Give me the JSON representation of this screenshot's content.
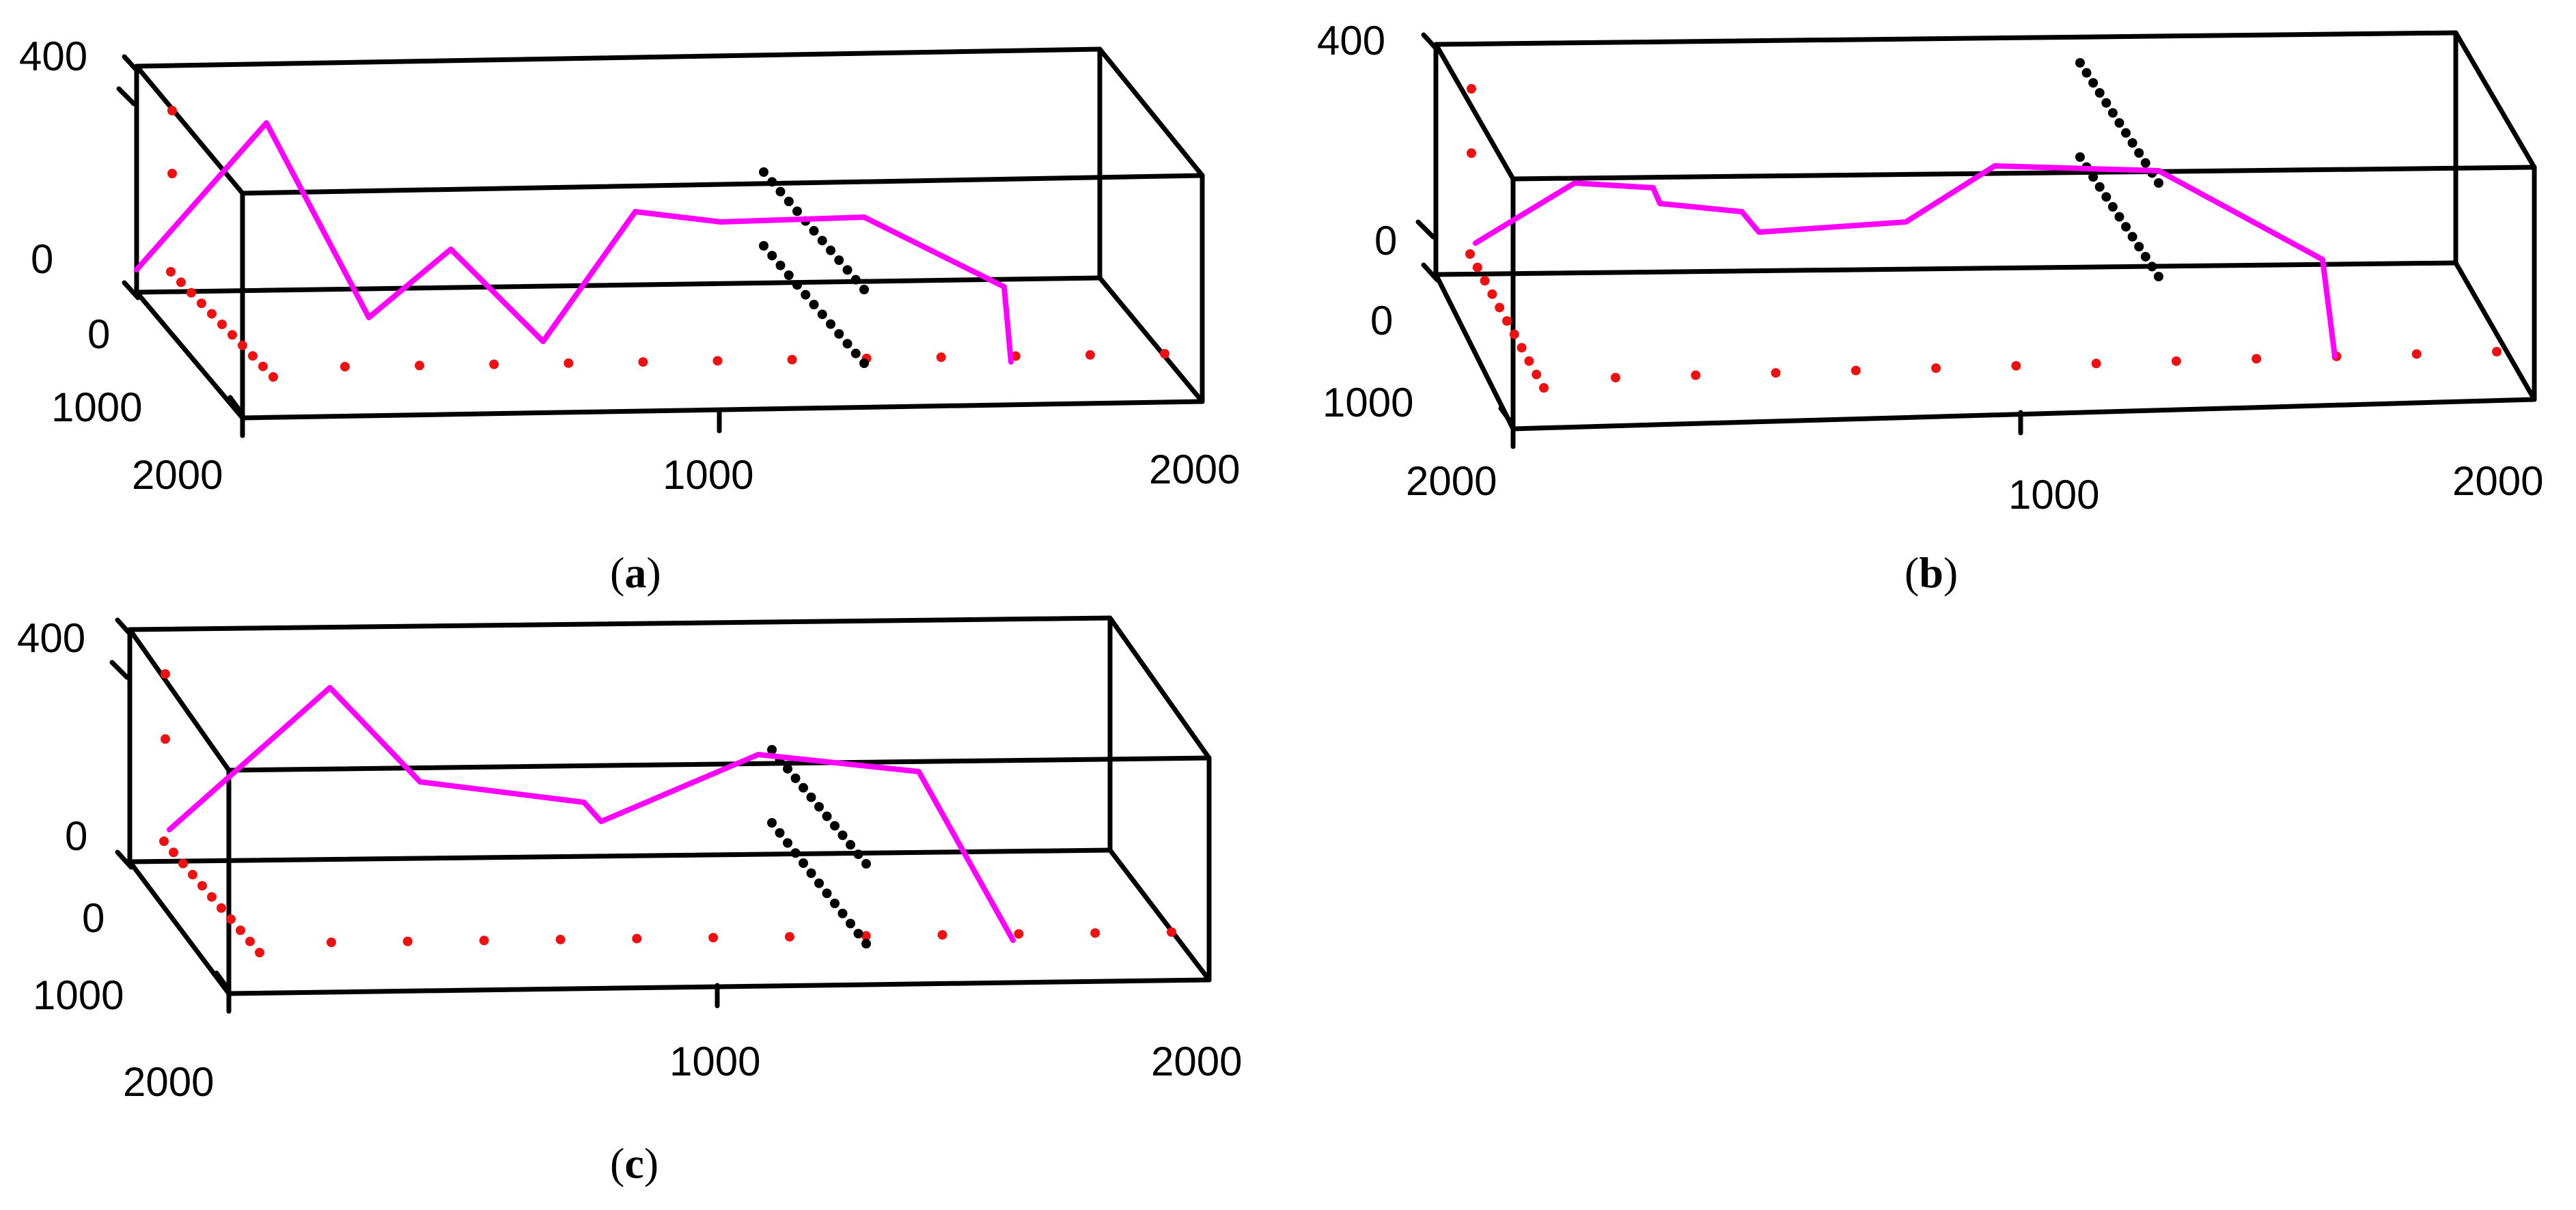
{
  "colors": {
    "path": "#ff00ff",
    "nodes_boundary": "#ee1111",
    "nodes_obstacle": "#000000",
    "frame": "#000000",
    "background": "#ffffff"
  },
  "chart_data": [
    {
      "type": "line",
      "caption_letter": "a",
      "axis_ranges": {
        "x": [
          0,
          2000
        ],
        "y": [
          0,
          1000
        ],
        "z": [
          0,
          400
        ]
      },
      "tick_labels": {
        "z_top": "400",
        "z_zero": "0",
        "y_zero": "0",
        "y_far": "1000",
        "x_left": "2000",
        "x_mid": "1000",
        "x_right": "2000"
      },
      "path_z_profile": [
        50,
        340,
        5,
        100,
        30,
        60,
        60,
        70,
        90,
        90,
        0
      ]
    },
    {
      "type": "line",
      "caption_letter": "b",
      "axis_ranges": {
        "x": [
          0,
          2000
        ],
        "y": [
          0,
          1000
        ],
        "z": [
          0,
          400
        ]
      },
      "tick_labels": {
        "z_top": "400",
        "z_zero": "0",
        "y_zero": "0",
        "y_far": "1000",
        "x_left": "2000",
        "x_mid": "1000",
        "x_right": "2000"
      },
      "path_z_profile": [
        50,
        120,
        135,
        110,
        100,
        85,
        110,
        180,
        220,
        210,
        80,
        0
      ]
    },
    {
      "type": "line",
      "caption_letter": "c",
      "axis_ranges": {
        "x": [
          0,
          2000
        ],
        "y": [
          0,
          1000
        ],
        "z": [
          0,
          400
        ]
      },
      "tick_labels": {
        "z_top": "400",
        "z_zero": "0",
        "y_zero": "0",
        "y_far": "1000",
        "x_left": "2000",
        "x_mid": "1000",
        "x_right": "2000"
      },
      "path_z_profile": [
        50,
        280,
        140,
        140,
        100,
        200,
        230,
        0
      ]
    }
  ]
}
